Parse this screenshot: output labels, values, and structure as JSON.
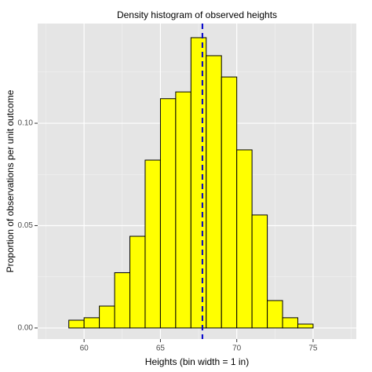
{
  "chart_data": {
    "type": "histogram",
    "title": "Density histogram of observed heights",
    "x_label": "Heights (bin width = 1 in)",
    "y_label": "Proportion of observations per unit outcome",
    "bins": [
      58,
      59,
      60,
      61,
      62,
      63,
      64,
      65,
      66,
      67,
      68,
      69,
      70,
      71,
      72,
      73,
      74,
      75,
      76,
      77
    ],
    "values": [
      0,
      0.0038,
      0.005,
      0.0107,
      0.027,
      0.0448,
      0.082,
      0.112,
      0.1153,
      0.1418,
      0.133,
      0.1226,
      0.087,
      0.0552,
      0.0134,
      0.005,
      0.0019,
      0,
      0
    ],
    "color": "#ffff00",
    "edge_color": "#000000",
    "mean_line": 67.75,
    "mean_line_color": "#0000cc",
    "xlim": [
      56.96,
      77.83
    ],
    "ylim": [
      -0.0054,
      0.1487
    ],
    "xticks": [
      60,
      65,
      70,
      75
    ],
    "yticks": [
      {
        "value": 0,
        "label": "0.00"
      },
      {
        "value": 0.05,
        "label": "0.05"
      },
      {
        "value": 0.1,
        "label": "0.10"
      }
    ],
    "x_minor_grid": [
      57.5,
      62.5,
      67.5,
      72.5,
      77.5
    ],
    "y_minor_grid": [
      0.025,
      0.075,
      0.125
    ],
    "grid": true
  }
}
